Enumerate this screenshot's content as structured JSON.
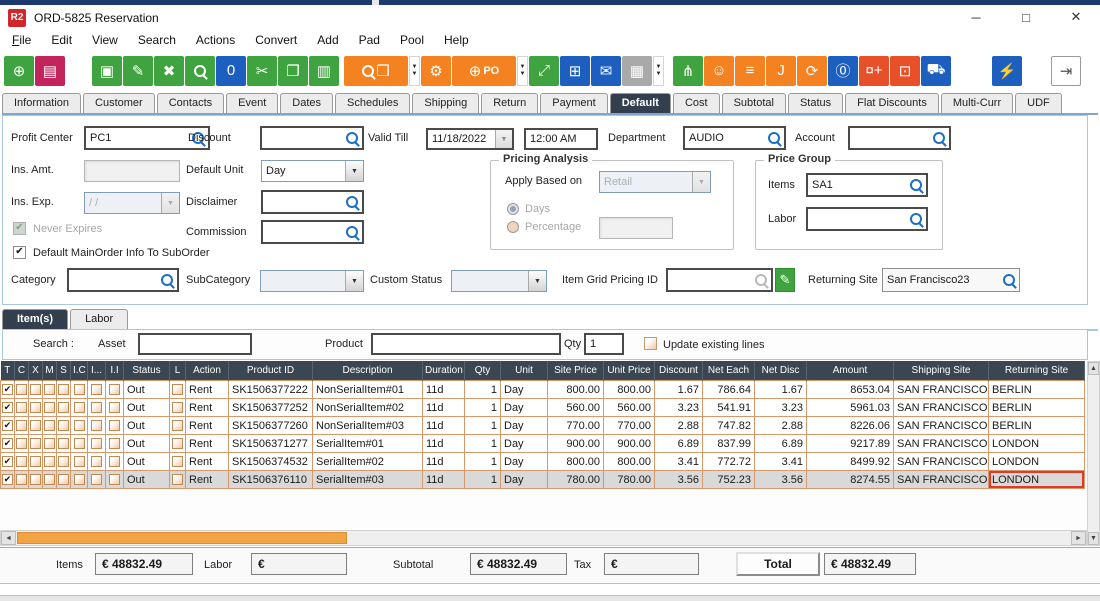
{
  "window": {
    "title": "ORD-5825 Reservation",
    "logo": "R2",
    "controls": [
      "minimize",
      "maximize",
      "close"
    ]
  },
  "menu": {
    "items": [
      {
        "label": "File",
        "u": true
      },
      {
        "label": "Edit"
      },
      {
        "label": "View"
      },
      {
        "label": "Search"
      },
      {
        "label": "Actions"
      },
      {
        "label": "Convert"
      },
      {
        "label": "Add"
      },
      {
        "label": "Pad"
      },
      {
        "label": "Pool"
      },
      {
        "label": "Help"
      }
    ]
  },
  "toolbar": {
    "buttons": [
      {
        "name": "new-order-icon",
        "glyph": "⊕",
        "bg": "#3fa33f"
      },
      {
        "name": "print-icon",
        "glyph": "▤",
        "bg": "#c2255c"
      },
      {
        "name": "save-icon",
        "glyph": "▣",
        "bg": "#3fa33f",
        "gap": 26
      },
      {
        "name": "edit-icon",
        "glyph": "✎",
        "bg": "#3fa33f"
      },
      {
        "name": "delete-icon",
        "glyph": "✖",
        "bg": "#3fa33f"
      },
      {
        "name": "search-icon",
        "mag": true,
        "bg": "#3fa33f"
      },
      {
        "name": "duplicate-zero-icon",
        "glyph": "0",
        "bg": "#1d5fbf"
      },
      {
        "name": "cut-icon",
        "glyph": "✂",
        "bg": "#3fa33f"
      },
      {
        "name": "copy-icon",
        "glyph": "❐",
        "bg": "#3fa33f"
      },
      {
        "name": "paste-icon",
        "glyph": "▥",
        "bg": "#3fa33f"
      },
      {
        "name": "item-search-icon",
        "mag": true,
        "glyph": "❒",
        "bg": "#f58220",
        "wide": true,
        "dd": true,
        "gap": 4
      },
      {
        "name": "process-gears-icon",
        "glyph": "⚙",
        "bg": "#f58220"
      },
      {
        "name": "add-po-cart-icon",
        "glyph": "⊕",
        "po": "PO",
        "bg": "#f58220",
        "wide": true,
        "dd": true
      },
      {
        "name": "expand-icon",
        "glyph": "⤢",
        "bg": "#3fa33f"
      },
      {
        "name": "modules-icon",
        "glyph": "⊞",
        "bg": "#1d5fbf"
      },
      {
        "name": "chat-icon",
        "glyph": "✉",
        "bg": "#1d5fbf"
      },
      {
        "name": "calendar-icon",
        "glyph": "▦",
        "bg": "#a9a9a9",
        "dd": true
      },
      {
        "name": "hierarchy-icon",
        "glyph": "⋔",
        "bg": "#3fa33f",
        "gap": 8
      },
      {
        "name": "smiley-icon",
        "glyph": "☺",
        "bg": "#f58220"
      },
      {
        "name": "notes-icon",
        "glyph": "≡",
        "bg": "#f58220"
      },
      {
        "name": "journal-icon",
        "glyph": "J",
        "bg": "#f58220"
      },
      {
        "name": "clipboard-sync-icon",
        "glyph": "⟳",
        "bg": "#f58220"
      },
      {
        "name": "message-zero-icon",
        "glyph": "⓪",
        "bg": "#1d5fbf"
      },
      {
        "name": "coins-add-icon",
        "glyph": "¤+",
        "bg": "#e8502a"
      },
      {
        "name": "cash-register-icon",
        "glyph": "⊡",
        "bg": "#e8502a"
      },
      {
        "name": "truck-icon",
        "glyph": "⛟",
        "bg": "#1d5fbf"
      },
      {
        "name": "lightning-icon",
        "glyph": "⚡",
        "bg": "#1d5fbf",
        "gap": 40
      },
      {
        "name": "exit-icon",
        "glyph": "⇥",
        "bg": "#ffffff",
        "fg": "#555555",
        "border": true,
        "gap": 28
      }
    ]
  },
  "tabs": {
    "items": [
      {
        "label": "Information"
      },
      {
        "label": "Customer"
      },
      {
        "label": "Contacts"
      },
      {
        "label": "Event"
      },
      {
        "label": "Dates"
      },
      {
        "label": "Schedules"
      },
      {
        "label": "Shipping"
      },
      {
        "label": "Return"
      },
      {
        "label": "Payment"
      },
      {
        "label": "Default",
        "selected": true
      },
      {
        "label": "Cost"
      },
      {
        "label": "Subtotal"
      },
      {
        "label": "Status"
      },
      {
        "label": "Flat Discounts"
      },
      {
        "label": "Multi-Curr"
      },
      {
        "label": "UDF"
      }
    ]
  },
  "form": {
    "profit_center": {
      "label": "Profit Center",
      "value": "PC1"
    },
    "discount": {
      "label": "Discount",
      "value": ""
    },
    "valid_till": {
      "label": "Valid Till",
      "date": "11/18/2022",
      "time": "12:00 AM"
    },
    "department": {
      "label": "Department",
      "value": "AUDIO"
    },
    "account": {
      "label": "Account",
      "value": ""
    },
    "ins_amt": {
      "label": "Ins. Amt.",
      "value": ""
    },
    "default_unit": {
      "label": "Default Unit",
      "value": "Day"
    },
    "ins_exp": {
      "label": "Ins. Exp.",
      "value": "/ /"
    },
    "disclaimer": {
      "label": "Disclaimer",
      "value": ""
    },
    "commission": {
      "label": "Commission",
      "value": ""
    },
    "never_expires": {
      "label": "Never Expires",
      "checked": true,
      "disabled": true
    },
    "default_mainorder": {
      "label": "Default MainOrder Info To SubOrder",
      "checked": true
    },
    "pricing_analysis": {
      "title": "Pricing Analysis",
      "apply_label": "Apply Based on",
      "apply_value": "Retail",
      "radio_days": "Days",
      "radio_percentage": "Percentage",
      "percentage_value": ""
    },
    "price_group": {
      "title": "Price Group",
      "items_label": "Items",
      "items_value": "SA1",
      "labor_label": "Labor",
      "labor_value": ""
    },
    "category": {
      "label": "Category",
      "value": ""
    },
    "subcategory": {
      "label": "SubCategory",
      "value": ""
    },
    "custom_status": {
      "label": "Custom Status",
      "value": ""
    },
    "item_grid_pricing": {
      "label": "Item Grid Pricing ID",
      "value": ""
    },
    "returning_site": {
      "label": "Returning Site",
      "value": "San Francisco23"
    }
  },
  "item_tabs": {
    "items": [
      {
        "label": "Item(s)",
        "selected": true
      },
      {
        "label": "Labor"
      }
    ]
  },
  "search_bar": {
    "search_label": "Search :",
    "asset_label": "Asset",
    "asset_value": "",
    "product_label": "Product",
    "product_value": "",
    "qty_label": "Qty",
    "qty_value": "1",
    "update_label": "Update existing lines",
    "update_checked": false
  },
  "grid": {
    "columns": [
      "T",
      "C",
      "X",
      "M",
      "S",
      "I.C",
      "I...",
      "I.I",
      "Status",
      "L",
      "Action",
      "Product ID",
      "Description",
      "Duration",
      "Qty",
      "Unit",
      "Site Price",
      "Unit Price",
      "Discount",
      "Net Each",
      "Net Disc",
      "Amount",
      "Shipping Site",
      "Returning Site"
    ],
    "rows": [
      {
        "status": "Out",
        "action": "Rent",
        "product_id": "SK1506377222",
        "description": "NonSerialItem#01",
        "duration": "11d",
        "qty": "1",
        "unit": "Day",
        "site_price": "800.00",
        "unit_price": "800.00",
        "discount": "1.67",
        "net_each": "786.64",
        "net_disc": "1.67",
        "amount": "8653.04",
        "shipping_site": "SAN FRANCISCO",
        "returning_site": "BERLIN"
      },
      {
        "status": "Out",
        "action": "Rent",
        "product_id": "SK1506377252",
        "description": "NonSerialItem#02",
        "duration": "11d",
        "qty": "1",
        "unit": "Day",
        "site_price": "560.00",
        "unit_price": "560.00",
        "discount": "3.23",
        "net_each": "541.91",
        "net_disc": "3.23",
        "amount": "5961.03",
        "shipping_site": "SAN FRANCISCO",
        "returning_site": "BERLIN"
      },
      {
        "status": "Out",
        "action": "Rent",
        "product_id": "SK1506377260",
        "description": "NonSerialItem#03",
        "duration": "11d",
        "qty": "1",
        "unit": "Day",
        "site_price": "770.00",
        "unit_price": "770.00",
        "discount": "2.88",
        "net_each": "747.82",
        "net_disc": "2.88",
        "amount": "8226.06",
        "shipping_site": "SAN FRANCISCO",
        "returning_site": "BERLIN"
      },
      {
        "status": "Out",
        "action": "Rent",
        "product_id": "SK1506371277",
        "description": "SerialItem#01",
        "duration": "11d",
        "qty": "1",
        "unit": "Day",
        "site_price": "900.00",
        "unit_price": "900.00",
        "discount": "6.89",
        "net_each": "837.99",
        "net_disc": "6.89",
        "amount": "9217.89",
        "shipping_site": "SAN FRANCISCO",
        "returning_site": "LONDON"
      },
      {
        "status": "Out",
        "action": "Rent",
        "product_id": "SK1506374532",
        "description": "SerialItem#02",
        "duration": "11d",
        "qty": "1",
        "unit": "Day",
        "site_price": "800.00",
        "unit_price": "800.00",
        "discount": "3.41",
        "net_each": "772.72",
        "net_disc": "3.41",
        "amount": "8499.92",
        "shipping_site": "SAN FRANCISCO",
        "returning_site": "LONDON"
      },
      {
        "status": "Out",
        "action": "Rent",
        "product_id": "SK1506376110",
        "description": "SerialItem#03",
        "duration": "11d",
        "qty": "1",
        "unit": "Day",
        "site_price": "780.00",
        "unit_price": "780.00",
        "discount": "3.56",
        "net_each": "752.23",
        "net_disc": "3.56",
        "amount": "8274.55",
        "shipping_site": "SAN FRANCISCO",
        "returning_site": "LONDON",
        "selected": true
      }
    ]
  },
  "totals": {
    "items_label": "Items",
    "items_value": "€ 48832.49",
    "labor_label": "Labor",
    "labor_value": "€",
    "subtotal_label": "Subtotal",
    "subtotal_value": "€ 48832.49",
    "tax_label": "Tax",
    "tax_value": "€",
    "total_label": "Total",
    "total_value": "€ 48832.49"
  },
  "colors": {
    "accent_green": "#3fa33f",
    "accent_orange": "#f58220",
    "accent_blue": "#1d5fbf",
    "accent_red": "#e8502a",
    "accent_magenta": "#c2255c",
    "grid_line": "#d8996a",
    "header_bg": "#3a4651",
    "scroll_thumb": "#f2a444",
    "selected_cell_border": "#e3392c"
  }
}
